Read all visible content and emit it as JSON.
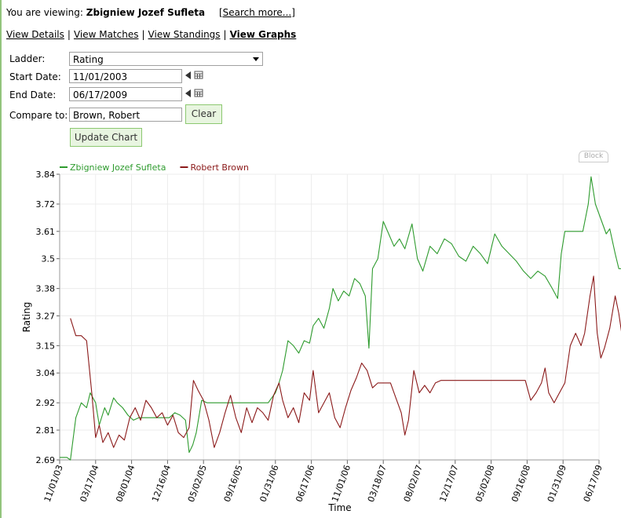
{
  "header": {
    "viewing_label": "You are viewing:",
    "player_name": "Zbigniew Jozef Sufleta",
    "search_link": "[Search more...]"
  },
  "nav": {
    "items": [
      "View Details",
      "View Matches",
      "View Standings",
      "View Graphs"
    ],
    "active": "View Graphs"
  },
  "form": {
    "ladder_label": "Ladder:",
    "ladder_value": "Rating",
    "start_label": "Start Date:",
    "start_value": "11/01/2003",
    "end_label": "End Date:",
    "end_value": "06/17/2009",
    "compare_label": "Compare to:",
    "compare_value": "Brown, Robert",
    "clear_label": "Clear",
    "update_label": "Update Chart",
    "block_label": "Block"
  },
  "chart_data": {
    "type": "line",
    "xlabel": "Time",
    "ylabel": "Rating",
    "ylim": [
      2.69,
      3.84
    ],
    "yticks": [
      "2.69",
      "2.81",
      "2.92",
      "3.04",
      "3.15",
      "3.27",
      "3.38",
      "3.5",
      "3.61",
      "3.72",
      "3.84"
    ],
    "xticks": [
      "11/01/03",
      "03/17/04",
      "08/01/04",
      "12/16/04",
      "05/02/05",
      "09/16/05",
      "01/31/06",
      "06/17/06",
      "11/01/06",
      "03/18/07",
      "08/02/07",
      "12/17/07",
      "05/02/08",
      "09/16/08",
      "01/31/09",
      "06/17/09"
    ],
    "grid": true,
    "legend_position": "top-left",
    "colors": {
      "Zbigniew Jozef Sufleta": "#2e9b2e",
      "Robert Brown": "#8b1a1a"
    },
    "series": [
      {
        "name": "Zbigniew Jozef Sufleta",
        "points": [
          [
            0.0,
            2.7
          ],
          [
            0.2,
            2.7
          ],
          [
            0.3,
            2.69
          ],
          [
            0.45,
            2.86
          ],
          [
            0.6,
            2.92
          ],
          [
            0.75,
            2.9
          ],
          [
            0.85,
            2.96
          ],
          [
            1.0,
            2.92
          ],
          [
            1.1,
            2.83
          ],
          [
            1.25,
            2.9
          ],
          [
            1.35,
            2.87
          ],
          [
            1.5,
            2.94
          ],
          [
            1.6,
            2.92
          ],
          [
            1.75,
            2.9
          ],
          [
            1.9,
            2.87
          ],
          [
            2.05,
            2.85
          ],
          [
            2.2,
            2.86
          ],
          [
            2.5,
            2.86
          ],
          [
            2.8,
            2.86
          ],
          [
            3.05,
            2.86
          ],
          [
            3.2,
            2.88
          ],
          [
            3.35,
            2.87
          ],
          [
            3.5,
            2.85
          ],
          [
            3.6,
            2.72
          ],
          [
            3.7,
            2.75
          ],
          [
            3.8,
            2.8
          ],
          [
            3.95,
            2.93
          ],
          [
            4.1,
            2.92
          ],
          [
            4.5,
            2.92
          ],
          [
            5.0,
            2.92
          ],
          [
            5.5,
            2.92
          ],
          [
            5.8,
            2.92
          ],
          [
            6.0,
            2.96
          ],
          [
            6.1,
            3.0
          ],
          [
            6.2,
            3.05
          ],
          [
            6.35,
            3.17
          ],
          [
            6.5,
            3.15
          ],
          [
            6.65,
            3.12
          ],
          [
            6.8,
            3.17
          ],
          [
            6.95,
            3.16
          ],
          [
            7.05,
            3.23
          ],
          [
            7.2,
            3.26
          ],
          [
            7.35,
            3.22
          ],
          [
            7.5,
            3.3
          ],
          [
            7.6,
            3.38
          ],
          [
            7.75,
            3.33
          ],
          [
            7.9,
            3.37
          ],
          [
            8.05,
            3.35
          ],
          [
            8.2,
            3.42
          ],
          [
            8.35,
            3.4
          ],
          [
            8.5,
            3.35
          ],
          [
            8.6,
            3.14
          ],
          [
            8.7,
            3.46
          ],
          [
            8.85,
            3.5
          ],
          [
            9.0,
            3.65
          ],
          [
            9.15,
            3.6
          ],
          [
            9.3,
            3.55
          ],
          [
            9.45,
            3.58
          ],
          [
            9.6,
            3.54
          ],
          [
            9.8,
            3.64
          ],
          [
            9.95,
            3.5
          ],
          [
            10.1,
            3.45
          ],
          [
            10.3,
            3.55
          ],
          [
            10.5,
            3.52
          ],
          [
            10.7,
            3.58
          ],
          [
            10.9,
            3.56
          ],
          [
            11.1,
            3.51
          ],
          [
            11.3,
            3.49
          ],
          [
            11.5,
            3.55
          ],
          [
            11.7,
            3.52
          ],
          [
            11.9,
            3.48
          ],
          [
            12.1,
            3.6
          ],
          [
            12.3,
            3.55
          ],
          [
            12.5,
            3.52
          ],
          [
            12.7,
            3.49
          ],
          [
            12.9,
            3.45
          ],
          [
            13.1,
            3.42
          ],
          [
            13.3,
            3.45
          ],
          [
            13.5,
            3.43
          ],
          [
            13.7,
            3.38
          ],
          [
            13.85,
            3.34
          ],
          [
            13.95,
            3.52
          ],
          [
            14.05,
            3.61
          ],
          [
            14.3,
            3.61
          ],
          [
            14.55,
            3.61
          ],
          [
            14.7,
            3.72
          ],
          [
            14.78,
            3.83
          ],
          [
            14.9,
            3.72
          ],
          [
            15.05,
            3.66
          ],
          [
            15.2,
            3.6
          ],
          [
            15.3,
            3.62
          ],
          [
            15.45,
            3.52
          ],
          [
            15.55,
            3.46
          ],
          [
            15.65,
            3.46
          ]
        ]
      },
      {
        "name": "Robert Brown",
        "points": [
          [
            0.3,
            3.26
          ],
          [
            0.45,
            3.19
          ],
          [
            0.6,
            3.19
          ],
          [
            0.75,
            3.17
          ],
          [
            0.9,
            2.95
          ],
          [
            1.0,
            2.78
          ],
          [
            1.1,
            2.83
          ],
          [
            1.2,
            2.76
          ],
          [
            1.35,
            2.8
          ],
          [
            1.5,
            2.74
          ],
          [
            1.65,
            2.79
          ],
          [
            1.8,
            2.77
          ],
          [
            1.95,
            2.86
          ],
          [
            2.1,
            2.9
          ],
          [
            2.25,
            2.85
          ],
          [
            2.4,
            2.93
          ],
          [
            2.55,
            2.9
          ],
          [
            2.7,
            2.86
          ],
          [
            2.85,
            2.88
          ],
          [
            3.0,
            2.83
          ],
          [
            3.15,
            2.87
          ],
          [
            3.3,
            2.8
          ],
          [
            3.45,
            2.78
          ],
          [
            3.6,
            2.82
          ],
          [
            3.72,
            3.01
          ],
          [
            3.85,
            2.97
          ],
          [
            4.0,
            2.93
          ],
          [
            4.15,
            2.85
          ],
          [
            4.3,
            2.74
          ],
          [
            4.45,
            2.8
          ],
          [
            4.6,
            2.88
          ],
          [
            4.75,
            2.95
          ],
          [
            4.9,
            2.86
          ],
          [
            5.05,
            2.8
          ],
          [
            5.2,
            2.9
          ],
          [
            5.35,
            2.84
          ],
          [
            5.5,
            2.9
          ],
          [
            5.65,
            2.88
          ],
          [
            5.8,
            2.85
          ],
          [
            5.95,
            2.95
          ],
          [
            6.1,
            3.0
          ],
          [
            6.2,
            2.93
          ],
          [
            6.35,
            2.86
          ],
          [
            6.5,
            2.9
          ],
          [
            6.65,
            2.84
          ],
          [
            6.8,
            2.96
          ],
          [
            6.95,
            2.93
          ],
          [
            7.05,
            3.05
          ],
          [
            7.2,
            2.88
          ],
          [
            7.35,
            2.92
          ],
          [
            7.5,
            2.96
          ],
          [
            7.65,
            2.86
          ],
          [
            7.8,
            2.82
          ],
          [
            7.95,
            2.9
          ],
          [
            8.1,
            2.97
          ],
          [
            8.25,
            3.02
          ],
          [
            8.4,
            3.08
          ],
          [
            8.55,
            3.05
          ],
          [
            8.7,
            2.98
          ],
          [
            8.85,
            3.0
          ],
          [
            9.0,
            3.0
          ],
          [
            9.2,
            3.0
          ],
          [
            9.35,
            2.94
          ],
          [
            9.5,
            2.88
          ],
          [
            9.6,
            2.79
          ],
          [
            9.7,
            2.85
          ],
          [
            9.85,
            3.05
          ],
          [
            10.0,
            2.96
          ],
          [
            10.15,
            2.99
          ],
          [
            10.3,
            2.96
          ],
          [
            10.45,
            3.0
          ],
          [
            10.6,
            3.01
          ],
          [
            11.0,
            3.01
          ],
          [
            11.5,
            3.01
          ],
          [
            12.0,
            3.01
          ],
          [
            12.5,
            3.01
          ],
          [
            12.95,
            3.01
          ],
          [
            13.1,
            2.93
          ],
          [
            13.25,
            2.96
          ],
          [
            13.4,
            3.0
          ],
          [
            13.5,
            3.06
          ],
          [
            13.6,
            2.96
          ],
          [
            13.75,
            2.92
          ],
          [
            13.9,
            2.96
          ],
          [
            14.05,
            3.0
          ],
          [
            14.2,
            3.15
          ],
          [
            14.35,
            3.2
          ],
          [
            14.5,
            3.15
          ],
          [
            14.6,
            3.2
          ],
          [
            14.75,
            3.35
          ],
          [
            14.85,
            3.43
          ],
          [
            14.95,
            3.2
          ],
          [
            15.05,
            3.1
          ],
          [
            15.15,
            3.14
          ],
          [
            15.3,
            3.22
          ],
          [
            15.45,
            3.35
          ],
          [
            15.55,
            3.28
          ],
          [
            15.65,
            3.18
          ]
        ]
      }
    ]
  }
}
